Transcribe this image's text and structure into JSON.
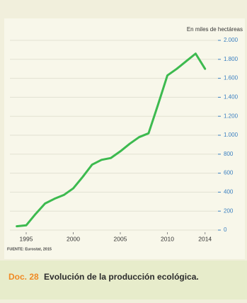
{
  "chart_data": {
    "type": "line",
    "y_label": "En miles de hectáreas",
    "source": "FUENTE: Eurostat, 2015",
    "caption": {
      "label": "Doc. 28",
      "text": "Evolución de la producción ecológica."
    },
    "x": [
      1994,
      1995,
      1996,
      1997,
      1998,
      1999,
      2000,
      2001,
      2002,
      2003,
      2004,
      2005,
      2006,
      2007,
      2008,
      2009,
      2010,
      2011,
      2012,
      2013,
      2014
    ],
    "series": [
      {
        "color": "#3dba4f",
        "values": [
          40,
          50,
          170,
          280,
          330,
          370,
          440,
          560,
          690,
          740,
          760,
          830,
          910,
          980,
          1020,
          1320,
          1630,
          1700,
          1780,
          1860,
          1700
        ]
      }
    ],
    "xlim": [
      1993,
      2015
    ],
    "xticks": [
      1995,
      2000,
      2005,
      2010,
      2014
    ],
    "ylim": [
      0,
      2000
    ],
    "yticks": [
      0,
      200,
      400,
      600,
      800,
      {
        "value": 1000,
        "label": "1.000"
      },
      {
        "value": 1200,
        "label": "1.200"
      },
      {
        "value": 1400,
        "label": "1.400"
      },
      {
        "value": 1600,
        "label": "1.600"
      },
      {
        "value": 1800,
        "label": "1.800"
      },
      {
        "value": 2000,
        "label": "2.000"
      }
    ],
    "grid": true
  }
}
